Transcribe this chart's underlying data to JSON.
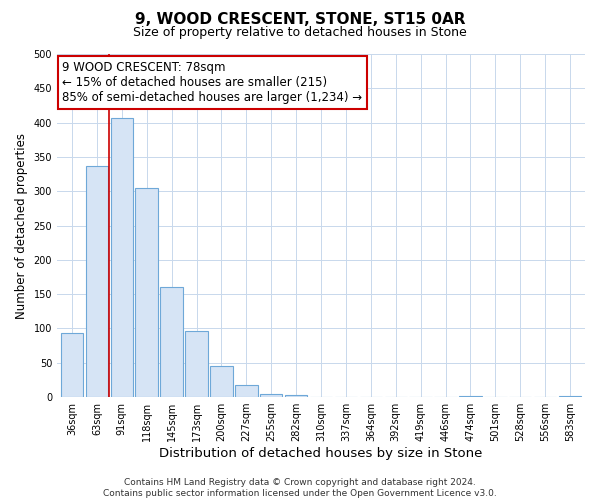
{
  "title": "9, WOOD CRESCENT, STONE, ST15 0AR",
  "subtitle": "Size of property relative to detached houses in Stone",
  "xlabel": "Distribution of detached houses by size in Stone",
  "ylabel": "Number of detached properties",
  "categories": [
    "36sqm",
    "63sqm",
    "91sqm",
    "118sqm",
    "145sqm",
    "173sqm",
    "200sqm",
    "227sqm",
    "255sqm",
    "282sqm",
    "310sqm",
    "337sqm",
    "364sqm",
    "392sqm",
    "419sqm",
    "446sqm",
    "474sqm",
    "501sqm",
    "528sqm",
    "556sqm",
    "583sqm"
  ],
  "values": [
    93,
    337,
    407,
    304,
    161,
    96,
    45,
    18,
    4,
    3,
    0,
    0,
    0,
    0,
    0,
    0,
    2,
    0,
    0,
    0,
    2
  ],
  "bar_fill_color": "#d6e4f5",
  "bar_edge_color": "#6ea8d8",
  "vline_x": 1.5,
  "vline_color": "#cc0000",
  "annotation_text": "9 WOOD CRESCENT: 78sqm\n← 15% of detached houses are smaller (215)\n85% of semi-detached houses are larger (1,234) →",
  "annotation_box_color": "#ffffff",
  "annotation_box_edge": "#cc0000",
  "ylim": [
    0,
    500
  ],
  "yticks": [
    0,
    50,
    100,
    150,
    200,
    250,
    300,
    350,
    400,
    450,
    500
  ],
  "background_color": "#ffffff",
  "grid_color": "#c8d8ec",
  "footer": "Contains HM Land Registry data © Crown copyright and database right 2024.\nContains public sector information licensed under the Open Government Licence v3.0.",
  "title_fontsize": 11,
  "subtitle_fontsize": 9,
  "xlabel_fontsize": 9.5,
  "ylabel_fontsize": 8.5,
  "annotation_fontsize": 8.5,
  "footer_fontsize": 6.5,
  "tick_fontsize": 7
}
